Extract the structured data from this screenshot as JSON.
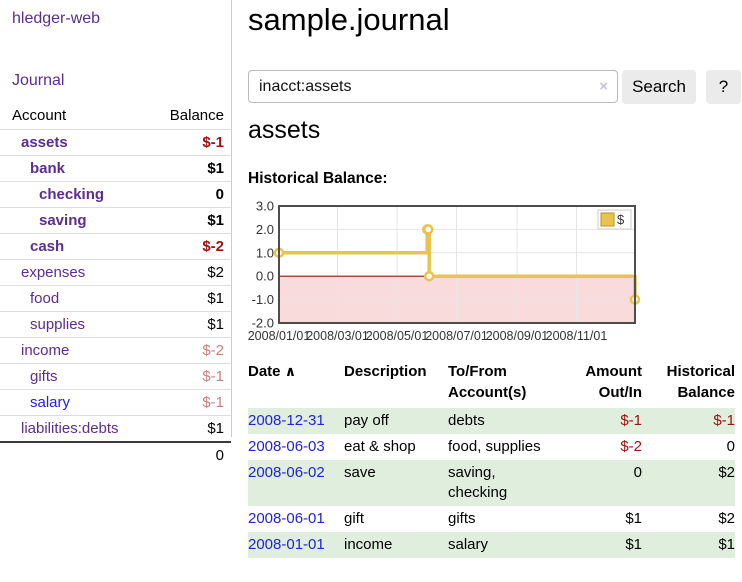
{
  "sidebar": {
    "app_title": "hledger-web",
    "journal_link": "Journal",
    "accounts_table": {
      "headers": {
        "account": "Account",
        "balance": "Balance"
      },
      "rows": [
        {
          "name": "assets",
          "depth": 1,
          "bold": true,
          "link_color": "purple",
          "balance": "$-1",
          "balance_style": "neg-bold"
        },
        {
          "name": "bank",
          "depth": 2,
          "bold": true,
          "link_color": "purple",
          "balance": "$1",
          "balance_style": "pos-bold"
        },
        {
          "name": "checking",
          "depth": 3,
          "bold": true,
          "link_color": "purple",
          "balance": "0",
          "balance_style": "pos-bold"
        },
        {
          "name": "saving",
          "depth": 3,
          "bold": true,
          "link_color": "purple",
          "balance": "$1",
          "balance_style": "pos-bold"
        },
        {
          "name": "cash",
          "depth": 2,
          "bold": true,
          "link_color": "purple",
          "balance": "$-2",
          "balance_style": "neg-bold"
        },
        {
          "name": "expenses",
          "depth": 1,
          "bold": false,
          "link_color": "purple",
          "balance": "$2",
          "balance_style": "pos"
        },
        {
          "name": "food",
          "depth": 2,
          "bold": false,
          "link_color": "purple",
          "balance": "$1",
          "balance_style": "pos"
        },
        {
          "name": "supplies",
          "depth": 2,
          "bold": false,
          "link_color": "purple",
          "balance": "$1",
          "balance_style": "pos"
        },
        {
          "name": "income",
          "depth": 1,
          "bold": false,
          "link_color": "purple",
          "balance": "$-2",
          "balance_style": "neg-light"
        },
        {
          "name": "gifts",
          "depth": 2,
          "bold": false,
          "link_color": "purple",
          "balance": "$-1",
          "balance_style": "neg-light"
        },
        {
          "name": "salary",
          "depth": 2,
          "bold": false,
          "link_color": "blue",
          "balance": "$-1",
          "balance_style": "neg-light"
        },
        {
          "name": "liabilities:debts",
          "depth": 1,
          "bold": false,
          "link_color": "purple",
          "balance": "$1",
          "balance_style": "pos"
        }
      ],
      "total": "0"
    }
  },
  "header": {
    "title": "sample.journal"
  },
  "search": {
    "value": "inacct:assets",
    "clear_icon": "×",
    "search_button": "Search",
    "help_button": "?"
  },
  "account_page": {
    "heading": "assets"
  },
  "chart_data": {
    "type": "line",
    "step": true,
    "title": "Historical Balance:",
    "series": [
      {
        "name": "$",
        "color": "#e9c34d",
        "points": [
          [
            "2008-01-01",
            1
          ],
          [
            "2008-06-01",
            2
          ],
          [
            "2008-06-02",
            2
          ],
          [
            "2008-06-03",
            0
          ],
          [
            "2008-12-31",
            -1
          ]
        ]
      }
    ],
    "x_range": [
      "2008-01-01",
      "2008-12-31"
    ],
    "x_ticks": [
      {
        "label": "2008/01/01",
        "date": "2008-01-01"
      },
      {
        "label": "2008/03/01",
        "date": "2008-03-01"
      },
      {
        "label": "2008/05/01",
        "date": "2008-05-01"
      },
      {
        "label": "2008/07/01",
        "date": "2008-07-01"
      },
      {
        "label": "2008/09/01",
        "date": "2008-09-01"
      },
      {
        "label": "2008/11/01",
        "date": "2008-11-01"
      }
    ],
    "y_ticks": [
      {
        "label": "3.0",
        "value": 3
      },
      {
        "label": "2.0",
        "value": 2
      },
      {
        "label": "1.0",
        "value": 1
      },
      {
        "label": "0.0",
        "value": 0
      },
      {
        "label": "-1.0",
        "value": -1
      },
      {
        "label": "-2.0",
        "value": -2
      }
    ],
    "ylim": [
      -2,
      3
    ],
    "grid": true,
    "legend_position": "top-right",
    "colors": {
      "negative_fill": "#f9dbdb",
      "zero_line": "#8b1a10",
      "gridline": "#e6e6e6",
      "border": "#4d4d4d",
      "marker_fill": "#ffffff"
    }
  },
  "register": {
    "headers": {
      "date": "Date",
      "sort_icon": "∧",
      "description": "Description",
      "accounts": "To/From Account(s)",
      "amount": "Amount Out/In",
      "balance": "Historical Balance"
    },
    "rows": [
      {
        "date": "2008-12-31",
        "description": "pay off",
        "accounts": "debts",
        "amount": "$-1",
        "amount_negative": true,
        "balance": "$-1",
        "balance_negative": true
      },
      {
        "date": "2008-06-03",
        "description": "eat & shop",
        "accounts": "food, supplies",
        "amount": "$-2",
        "amount_negative": true,
        "balance": "0",
        "balance_negative": false
      },
      {
        "date": "2008-06-02",
        "description": "save",
        "accounts": "saving, checking",
        "amount": "0",
        "amount_negative": false,
        "balance": "$2",
        "balance_negative": false
      },
      {
        "date": "2008-06-01",
        "description": "gift",
        "accounts": "gifts",
        "amount": "$1",
        "amount_negative": false,
        "balance": "$2",
        "balance_negative": false
      },
      {
        "date": "2008-01-01",
        "description": "income",
        "accounts": "salary",
        "amount": "$1",
        "amount_negative": false,
        "balance": "$1",
        "balance_negative": false
      }
    ]
  }
}
